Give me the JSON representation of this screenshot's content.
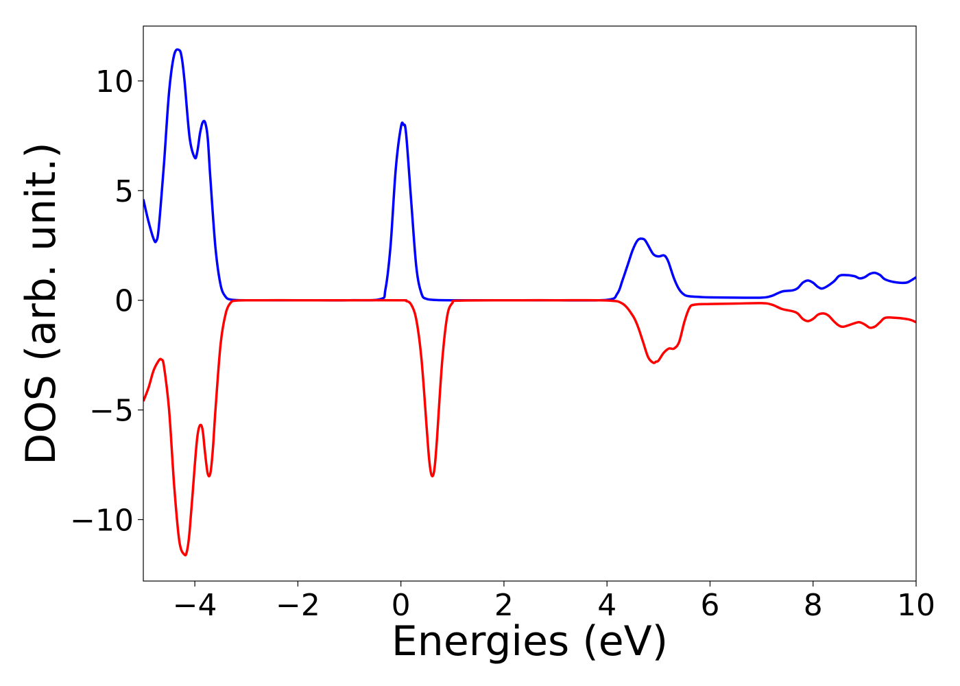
{
  "chart_data": {
    "type": "line",
    "title": "",
    "xlabel": "Energies (eV)",
    "ylabel": "DOS (arb. unit.)",
    "xlim": [
      -5,
      10
    ],
    "ylim": [
      -12.8,
      12.5
    ],
    "xticks": [
      {
        "value": -4,
        "label": "−4"
      },
      {
        "value": -2,
        "label": "−2"
      },
      {
        "value": 0,
        "label": "0"
      },
      {
        "value": 2,
        "label": "2"
      },
      {
        "value": 4,
        "label": "4"
      },
      {
        "value": 6,
        "label": "6"
      },
      {
        "value": 8,
        "label": "8"
      },
      {
        "value": 10,
        "label": "10"
      }
    ],
    "yticks": [
      {
        "value": -10,
        "label": "−10"
      },
      {
        "value": -5,
        "label": "−5"
      },
      {
        "value": 0,
        "label": "0"
      },
      {
        "value": 5,
        "label": "5"
      },
      {
        "value": 10,
        "label": "10"
      }
    ],
    "grid": false,
    "legend": "none",
    "series": [
      {
        "color": "#0000ff",
        "x": [
          -5.0,
          -4.9,
          -4.8,
          -4.75,
          -4.7,
          -4.6,
          -4.5,
          -4.4,
          -4.3,
          -4.25,
          -4.2,
          -4.1,
          -4.0,
          -3.95,
          -3.9,
          -3.85,
          -3.8,
          -3.75,
          -3.7,
          -3.6,
          -3.5,
          -3.4,
          -3.3,
          -3.2,
          -3.0,
          -2.0,
          -1.0,
          -0.4,
          -0.3,
          -0.2,
          -0.1,
          0.0,
          0.05,
          0.1,
          0.2,
          0.3,
          0.4,
          0.5,
          0.7,
          1.0,
          2.0,
          3.0,
          4.0,
          4.2,
          4.3,
          4.4,
          4.5,
          4.6,
          4.7,
          4.75,
          4.8,
          4.9,
          5.0,
          5.1,
          5.15,
          5.2,
          5.3,
          5.4,
          5.5,
          5.6,
          5.8,
          6.0,
          6.5,
          7.0,
          7.2,
          7.4,
          7.6,
          7.7,
          7.8,
          7.9,
          8.0,
          8.1,
          8.2,
          8.4,
          8.5,
          8.6,
          8.8,
          8.9,
          9.0,
          9.1,
          9.2,
          9.3,
          9.4,
          9.6,
          9.8,
          9.9,
          10.0
        ],
        "y": [
          4.6,
          3.6,
          2.8,
          2.7,
          3.3,
          6.2,
          9.5,
          11.2,
          11.4,
          11.0,
          10.0,
          7.4,
          6.5,
          6.8,
          7.6,
          8.1,
          8.1,
          7.4,
          5.6,
          2.4,
          0.7,
          0.15,
          0.03,
          0.01,
          0.0,
          0.0,
          0.0,
          0.05,
          0.5,
          2.5,
          6.0,
          7.9,
          8.0,
          7.6,
          4.5,
          1.5,
          0.3,
          0.06,
          0.01,
          0.0,
          0.0,
          0.0,
          0.02,
          0.3,
          0.9,
          1.6,
          2.3,
          2.75,
          2.8,
          2.7,
          2.5,
          2.1,
          2.0,
          2.05,
          1.95,
          1.7,
          1.0,
          0.5,
          0.25,
          0.18,
          0.15,
          0.13,
          0.12,
          0.12,
          0.2,
          0.4,
          0.45,
          0.55,
          0.8,
          0.9,
          0.8,
          0.6,
          0.55,
          0.85,
          1.1,
          1.15,
          1.1,
          1.0,
          1.05,
          1.2,
          1.25,
          1.15,
          0.95,
          0.82,
          0.8,
          0.9,
          1.05
        ]
      },
      {
        "color": "#ff0000",
        "x": [
          -5.0,
          -4.9,
          -4.8,
          -4.7,
          -4.65,
          -4.6,
          -4.5,
          -4.4,
          -4.3,
          -4.2,
          -4.15,
          -4.1,
          -4.0,
          -3.95,
          -3.9,
          -3.85,
          -3.8,
          -3.75,
          -3.7,
          -3.65,
          -3.6,
          -3.5,
          -3.4,
          -3.3,
          -3.2,
          -3.0,
          -2.0,
          -1.0,
          0.0,
          0.1,
          0.2,
          0.3,
          0.4,
          0.5,
          0.55,
          0.6,
          0.65,
          0.7,
          0.8,
          0.9,
          1.0,
          1.1,
          2.0,
          3.0,
          4.0,
          4.3,
          4.5,
          4.6,
          4.7,
          4.8,
          4.9,
          4.95,
          5.0,
          5.1,
          5.2,
          5.3,
          5.4,
          5.5,
          5.6,
          5.7,
          6.0,
          6.5,
          7.0,
          7.2,
          7.4,
          7.6,
          7.7,
          7.8,
          7.9,
          8.0,
          8.1,
          8.2,
          8.3,
          8.4,
          8.5,
          8.6,
          8.8,
          8.9,
          9.0,
          9.1,
          9.2,
          9.3,
          9.4,
          9.6,
          9.8,
          9.9,
          10.0
        ],
        "y": [
          -4.6,
          -4.0,
          -3.2,
          -2.75,
          -2.7,
          -3.0,
          -5.0,
          -8.5,
          -11.0,
          -11.6,
          -11.4,
          -10.5,
          -7.5,
          -6.2,
          -5.7,
          -5.9,
          -7.0,
          -7.9,
          -7.9,
          -6.8,
          -5.0,
          -2.0,
          -0.6,
          -0.1,
          -0.02,
          0.0,
          0.0,
          0.0,
          0.0,
          -0.03,
          -0.2,
          -0.9,
          -2.7,
          -5.8,
          -7.3,
          -8.0,
          -7.7,
          -6.3,
          -2.8,
          -0.7,
          -0.12,
          -0.02,
          0.0,
          0.0,
          -0.01,
          -0.15,
          -0.7,
          -1.2,
          -1.9,
          -2.6,
          -2.85,
          -2.8,
          -2.75,
          -2.4,
          -2.2,
          -2.2,
          -1.9,
          -1.0,
          -0.35,
          -0.2,
          -0.17,
          -0.15,
          -0.13,
          -0.2,
          -0.4,
          -0.5,
          -0.6,
          -0.85,
          -0.95,
          -0.85,
          -0.65,
          -0.6,
          -0.7,
          -0.95,
          -1.15,
          -1.2,
          -1.05,
          -1.0,
          -1.1,
          -1.25,
          -1.2,
          -1.0,
          -0.8,
          -0.8,
          -0.85,
          -0.9,
          -1.0
        ]
      }
    ]
  }
}
